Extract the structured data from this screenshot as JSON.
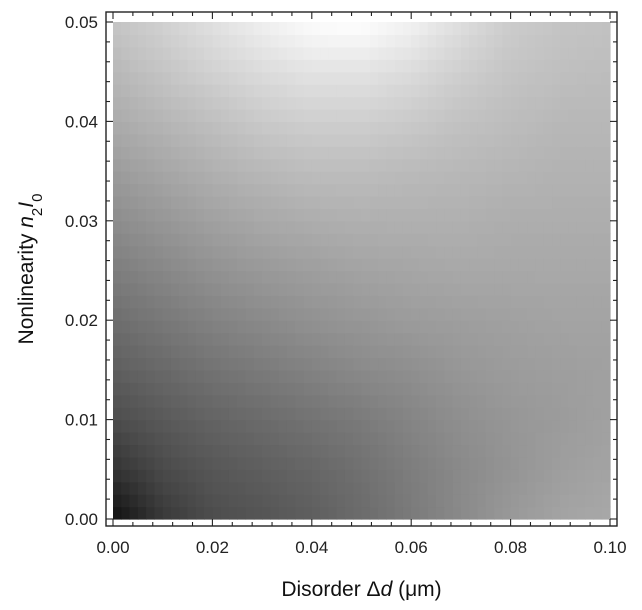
{
  "chart_data": {
    "type": "heatmap",
    "title": "",
    "xlabel": {
      "prefix": "Disorder ",
      "delta": "Δ",
      "var": "d",
      "unit": " (μm)"
    },
    "ylabel": {
      "prefix": "Nonlinearity ",
      "var1": "n",
      "sub1": "2",
      "var2": "I",
      "sub2": "0"
    },
    "xlim": [
      0.0,
      0.1
    ],
    "ylim": [
      0.0,
      0.05
    ],
    "x_ticks": [
      {
        "value": 0.0,
        "label": "0.00"
      },
      {
        "value": 0.02,
        "label": "0.02"
      },
      {
        "value": 0.04,
        "label": "0.04"
      },
      {
        "value": 0.06,
        "label": "0.06"
      },
      {
        "value": 0.08,
        "label": "0.08"
      },
      {
        "value": 0.1,
        "label": "0.10"
      }
    ],
    "y_ticks": [
      {
        "value": 0.0,
        "label": "0.00"
      },
      {
        "value": 0.01,
        "label": "0.01"
      },
      {
        "value": 0.02,
        "label": "0.02"
      },
      {
        "value": 0.03,
        "label": "0.03"
      },
      {
        "value": 0.04,
        "label": "0.04"
      },
      {
        "value": 0.05,
        "label": "0.05"
      }
    ],
    "colormap": "grayscale (dark = low, light = high)",
    "grid": false,
    "legend": "none",
    "x": [
      0.0,
      0.01,
      0.02,
      0.03,
      0.04,
      0.05,
      0.06,
      0.07,
      0.08,
      0.09,
      0.1
    ],
    "y": [
      0.0,
      0.005,
      0.01,
      0.015,
      0.02,
      0.025,
      0.03,
      0.035,
      0.04,
      0.045,
      0.05
    ],
    "z": [
      [
        0.06,
        0.22,
        0.3,
        0.33,
        0.37,
        0.42,
        0.48,
        0.54,
        0.6,
        0.64,
        0.66
      ],
      [
        0.2,
        0.29,
        0.34,
        0.37,
        0.4,
        0.44,
        0.49,
        0.54,
        0.58,
        0.62,
        0.64
      ],
      [
        0.3,
        0.35,
        0.39,
        0.42,
        0.45,
        0.48,
        0.52,
        0.56,
        0.59,
        0.61,
        0.63
      ],
      [
        0.37,
        0.41,
        0.45,
        0.48,
        0.51,
        0.54,
        0.56,
        0.59,
        0.61,
        0.62,
        0.63
      ],
      [
        0.43,
        0.47,
        0.51,
        0.54,
        0.57,
        0.59,
        0.61,
        0.62,
        0.63,
        0.64,
        0.64
      ],
      [
        0.49,
        0.53,
        0.57,
        0.6,
        0.62,
        0.64,
        0.65,
        0.66,
        0.66,
        0.66,
        0.66
      ],
      [
        0.55,
        0.59,
        0.63,
        0.66,
        0.68,
        0.69,
        0.69,
        0.69,
        0.68,
        0.68,
        0.68
      ],
      [
        0.61,
        0.65,
        0.69,
        0.72,
        0.74,
        0.74,
        0.73,
        0.72,
        0.71,
        0.7,
        0.7
      ],
      [
        0.67,
        0.71,
        0.75,
        0.79,
        0.81,
        0.81,
        0.79,
        0.76,
        0.74,
        0.72,
        0.72
      ],
      [
        0.72,
        0.77,
        0.82,
        0.86,
        0.89,
        0.89,
        0.86,
        0.81,
        0.77,
        0.75,
        0.74
      ],
      [
        0.77,
        0.82,
        0.88,
        0.94,
        0.99,
        1.0,
        0.95,
        0.87,
        0.8,
        0.77,
        0.76
      ]
    ]
  }
}
